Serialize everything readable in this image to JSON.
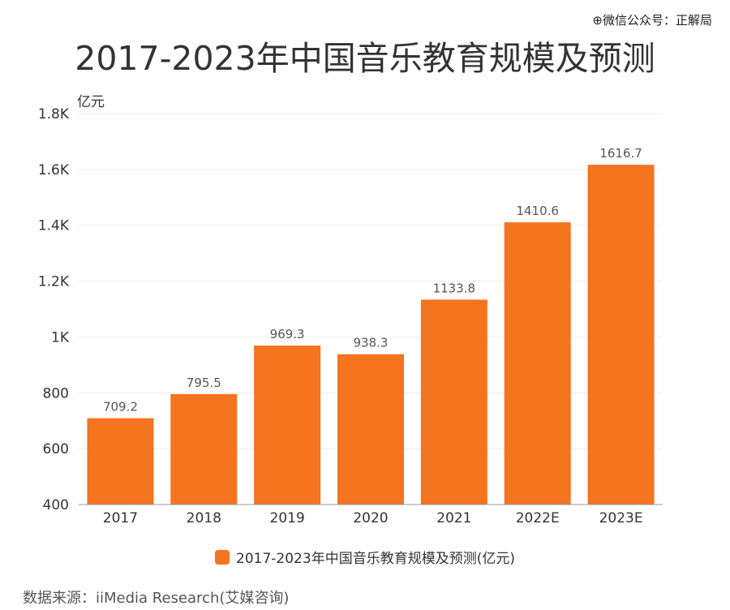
{
  "watermark": "⊕微信公众号：正解局",
  "source": "数据来源：iiMedia Research(艾媒咨询)",
  "chart_data": {
    "type": "bar",
    "title": "2017-2023年中国音乐教育规模及预测",
    "ylabel": "亿元",
    "xlabel": "",
    "ylim": [
      400,
      1800
    ],
    "yticks": [
      400,
      600,
      800,
      1000,
      1200,
      1400,
      1600,
      1800
    ],
    "ytick_labels": [
      "400",
      "600",
      "800",
      "1K",
      "1.2K",
      "1.4K",
      "1.6K",
      "1.8K"
    ],
    "categories": [
      "2017",
      "2018",
      "2019",
      "2020",
      "2021",
      "2022E",
      "2023E"
    ],
    "series": [
      {
        "name": "2017-2023年中国音乐教育规模及预测(亿元)",
        "values": [
          709.2,
          795.5,
          969.3,
          938.3,
          1133.8,
          1410.6,
          1616.7
        ],
        "labels": [
          "709.2",
          "795.5",
          "969.3",
          "938.3",
          "1133.8",
          "1410.6",
          "1616.7"
        ],
        "color": "#F5741F"
      }
    ],
    "grid": true,
    "legend": "bottom-center"
  }
}
